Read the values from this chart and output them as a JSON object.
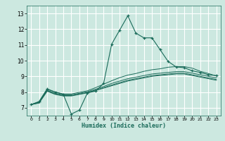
{
  "title": "",
  "xlabel": "Humidex (Indice chaleur)",
  "ylabel": "",
  "background_color": "#cce8e0",
  "grid_color": "#ffffff",
  "line_color": "#1a6b5a",
  "xlim": [
    -0.5,
    23.5
  ],
  "ylim": [
    6.5,
    13.5
  ],
  "xticks": [
    0,
    1,
    2,
    3,
    4,
    5,
    6,
    7,
    8,
    9,
    10,
    11,
    12,
    13,
    14,
    15,
    16,
    17,
    18,
    19,
    20,
    21,
    22,
    23
  ],
  "yticks": [
    7,
    8,
    9,
    10,
    11,
    12,
    13
  ],
  "line1_x": [
    0,
    1,
    2,
    3,
    4,
    5,
    6,
    7,
    8,
    9,
    10,
    11,
    12,
    13,
    14,
    15,
    16,
    17,
    18,
    19,
    20,
    21,
    22,
    23
  ],
  "line1_y": [
    7.2,
    7.4,
    8.2,
    8.0,
    7.85,
    6.6,
    6.85,
    7.95,
    8.05,
    8.55,
    11.05,
    11.95,
    12.85,
    11.75,
    11.45,
    11.45,
    10.7,
    9.95,
    9.6,
    9.55,
    9.35,
    9.25,
    9.1,
    9.05
  ],
  "line2_x": [
    0,
    1,
    2,
    3,
    4,
    5,
    6,
    7,
    8,
    9,
    10,
    11,
    12,
    13,
    14,
    15,
    16,
    17,
    18,
    19,
    20,
    21,
    22,
    23
  ],
  "line2_y": [
    7.2,
    7.38,
    8.18,
    8.0,
    7.88,
    7.88,
    7.98,
    8.08,
    8.28,
    8.5,
    8.72,
    8.92,
    9.08,
    9.18,
    9.32,
    9.42,
    9.48,
    9.58,
    9.62,
    9.62,
    9.52,
    9.32,
    9.18,
    9.02
  ],
  "line3_x": [
    0,
    1,
    2,
    3,
    4,
    5,
    6,
    7,
    8,
    9,
    10,
    11,
    12,
    13,
    14,
    15,
    16,
    17,
    18,
    19,
    20,
    21,
    22,
    23
  ],
  "line3_y": [
    7.2,
    7.35,
    8.12,
    7.92,
    7.82,
    7.82,
    7.92,
    8.02,
    8.18,
    8.35,
    8.55,
    8.7,
    8.85,
    8.95,
    9.05,
    9.15,
    9.2,
    9.25,
    9.3,
    9.3,
    9.2,
    9.1,
    9.0,
    8.9
  ],
  "line4_x": [
    0,
    1,
    2,
    3,
    4,
    5,
    6,
    7,
    8,
    9,
    10,
    11,
    12,
    13,
    14,
    15,
    16,
    17,
    18,
    19,
    20,
    21,
    22,
    23
  ],
  "line4_y": [
    7.2,
    7.32,
    8.08,
    7.88,
    7.78,
    7.78,
    7.88,
    7.98,
    8.12,
    8.28,
    8.45,
    8.6,
    8.75,
    8.85,
    8.95,
    9.05,
    9.1,
    9.15,
    9.2,
    9.2,
    9.1,
    9.0,
    8.9,
    8.8
  ],
  "line5_x": [
    0,
    1,
    2,
    3,
    4,
    5,
    6,
    7,
    8,
    9,
    10,
    11,
    12,
    13,
    14,
    15,
    16,
    17,
    18,
    19,
    20,
    21,
    22,
    23
  ],
  "line5_y": [
    7.2,
    7.3,
    8.05,
    7.85,
    7.75,
    7.75,
    7.85,
    7.95,
    8.1,
    8.25,
    8.4,
    8.55,
    8.7,
    8.8,
    8.9,
    9.0,
    9.05,
    9.1,
    9.15,
    9.15,
    9.05,
    8.95,
    8.85,
    8.75
  ]
}
